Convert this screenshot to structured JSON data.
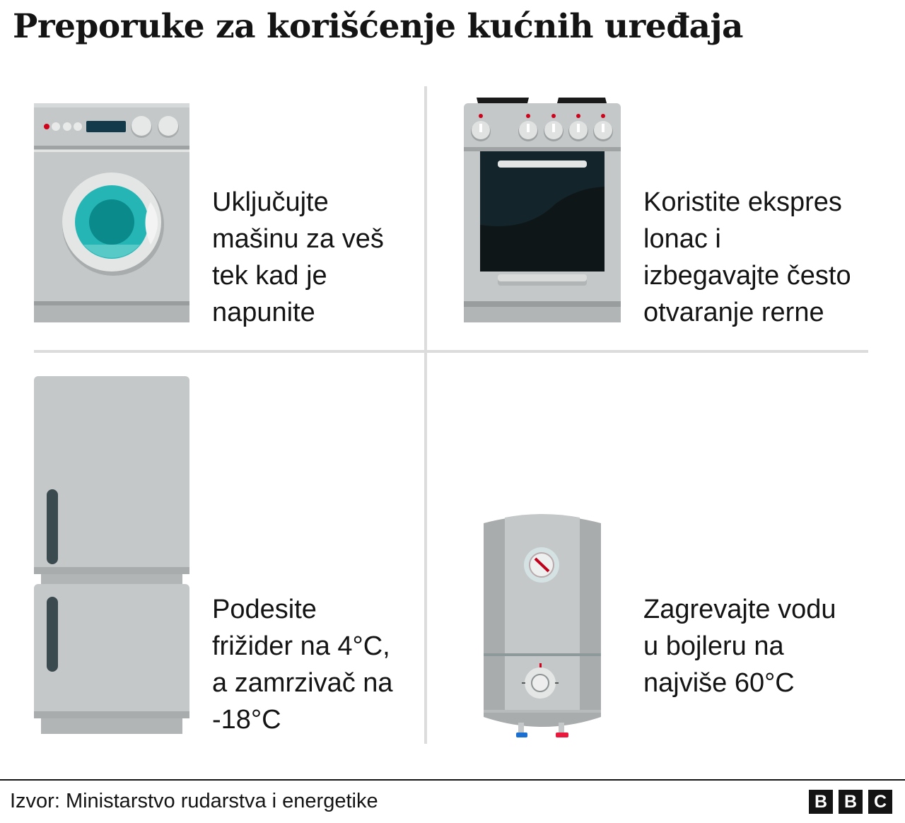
{
  "title": "Preporuke za korišćenje kućnih uređaja",
  "tips": [
    {
      "appliance_icon": "washing-machine-icon",
      "lines": [
        "Uključujte",
        "mašinu za veš",
        "tek kad je",
        "napunite"
      ]
    },
    {
      "appliance_icon": "stove-oven-icon",
      "lines": [
        "Koristite ekspres",
        "lonac i",
        "izbegavajte često",
        "otvaranje rerne"
      ]
    },
    {
      "appliance_icon": "refrigerator-icon",
      "lines": [
        "Podesite",
        "frižider na 4°C,",
        "a zamrzivač na",
        "-18°C"
      ]
    },
    {
      "appliance_icon": "water-heater-icon",
      "lines": [
        "Zagrevajte vodu",
        "u bojleru na",
        "najviše 60°C"
      ]
    }
  ],
  "footer": {
    "source": "Izvor: Ministarstvo rudarstva i energetike",
    "logo": [
      "B",
      "B",
      "C"
    ]
  },
  "colors": {
    "appliance_grey": "#c4c8c8",
    "drum_teal": "#26b5b5",
    "oven_glass": "#13242a",
    "accent_red": "#d0021b"
  }
}
